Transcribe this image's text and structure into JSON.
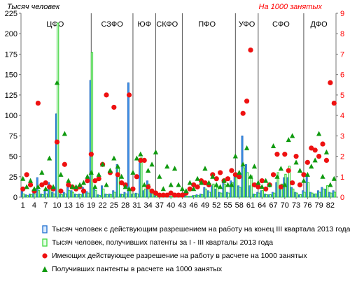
{
  "chart_data": {
    "type": "bar",
    "left_axis_title": "Тысяч человек",
    "right_axis_title": "На 1000 занятых",
    "left_ylim": [
      0,
      225
    ],
    "right_ylim": [
      0,
      9
    ],
    "left_ticks": [
      0,
      25,
      50,
      75,
      100,
      125,
      150,
      175,
      200,
      225
    ],
    "right_ticks": [
      0,
      1,
      2,
      3,
      4,
      5,
      6,
      7,
      8,
      9
    ],
    "x_ticks": [
      "1",
      "4",
      "7",
      "10",
      "13",
      "16",
      "19",
      "22",
      "25",
      "28",
      "31",
      "34",
      "37",
      "40",
      "43",
      "46",
      "49",
      "52",
      "55",
      "58",
      "61",
      "64",
      "67",
      "70",
      "73",
      "76",
      "79",
      "82"
    ],
    "regions": [
      {
        "label": "ЦФО",
        "center": 9
      },
      {
        "label": "СЗФО",
        "center": 24
      },
      {
        "label": "ЮФ",
        "center": 32.5
      },
      {
        "label": "СКФО",
        "center": 38.5
      },
      {
        "label": "ПФО",
        "center": 49
      },
      {
        "label": "УФО",
        "center": 59.5
      },
      {
        "label": "СФО",
        "center": 68.5
      },
      {
        "label": "ДФО",
        "center": 78.5
      }
    ],
    "region_separators": [
      18.5,
      29.5,
      35.5,
      42.5,
      56.5,
      62.5,
      74.5
    ],
    "series": [
      {
        "name": "Тысяч человек с действующим разрешением на работу на конец III квартала 2013 года",
        "kind": "bar",
        "axis": "left",
        "color": "#1f6fd0",
        "values": [
          9,
          3,
          4,
          6,
          24,
          4,
          9,
          18,
          6,
          102,
          4,
          6,
          12,
          8,
          4,
          4,
          12,
          7,
          143,
          12,
          3,
          14,
          4,
          4,
          8,
          40,
          4,
          6,
          140,
          4,
          5,
          42,
          8,
          20,
          6,
          2,
          2,
          1,
          2,
          1,
          2,
          1,
          1,
          2,
          1,
          2,
          3,
          4,
          12,
          8,
          14,
          10,
          6,
          18,
          6,
          20,
          28,
          14,
          75,
          40,
          14,
          4,
          6,
          8,
          4,
          3,
          6,
          18,
          12,
          24,
          24,
          12,
          6,
          3,
          8,
          26,
          6,
          4,
          8,
          12,
          10,
          6,
          8
        ]
      },
      {
        "name": "Тысяч человек, получивших патенты за I - III кварталы 2013 года",
        "kind": "bar",
        "axis": "left",
        "color": "#3fd93f",
        "values": [
          4,
          2,
          3,
          4,
          8,
          3,
          4,
          12,
          4,
          213,
          3,
          4,
          8,
          6,
          3,
          3,
          8,
          5,
          177,
          8,
          2,
          10,
          3,
          3,
          6,
          35,
          3,
          4,
          8,
          4,
          4,
          48,
          10,
          16,
          4,
          2,
          1,
          1,
          1,
          1,
          1,
          1,
          1,
          1,
          1,
          2,
          2,
          3,
          10,
          6,
          16,
          12,
          5,
          16,
          5,
          18,
          24,
          12,
          36,
          30,
          26,
          3,
          5,
          8,
          3,
          3,
          5,
          30,
          16,
          28,
          38,
          10,
          5,
          3,
          6,
          18,
          5,
          4,
          6,
          10,
          14,
          5,
          6
        ]
      },
      {
        "name": "Имеющих действующее разрешение на работу в расчете на 1000 занятых",
        "kind": "circle",
        "axis": "right",
        "color": "#ee1111",
        "values": [
          0.4,
          1.1,
          0.6,
          0.3,
          4.6,
          0.6,
          0.7,
          0.5,
          0.4,
          2.7,
          0.3,
          1.6,
          0.6,
          0.5,
          0.4,
          0.5,
          0.3,
          0.8,
          2.1,
          0.8,
          0.9,
          1.6,
          5.0,
          1.2,
          4.4,
          1.1,
          0.7,
          0.6,
          5.0,
          0.4,
          1.0,
          1.8,
          1.8,
          0.5,
          0.3,
          0.2,
          0.1,
          0.1,
          0.1,
          0.2,
          0.1,
          0.1,
          0.1,
          0.2,
          0.4,
          0.6,
          0.5,
          0.8,
          0.7,
          0.6,
          1.1,
          0.9,
          1.2,
          0.8,
          0.9,
          1.3,
          1.1,
          1.0,
          4.1,
          4.7,
          7.2,
          0.6,
          0.5,
          0.8,
          0.4,
          0.6,
          1.1,
          2.1,
          0.5,
          2.1,
          1.3,
          0.7,
          2.0,
          0.6,
          1.1,
          1.7,
          2.4,
          2.3,
          2.0,
          2.6,
          1.8,
          5.6,
          4.6
        ]
      },
      {
        "name": "Получивших пантенты в расчете на 1000 занятых",
        "kind": "triangle",
        "axis": "right",
        "color": "#0f9a0f",
        "values": [
          0.9,
          0.5,
          0.8,
          0.4,
          0.5,
          1.2,
          0.4,
          1.9,
          0.5,
          5.6,
          1.1,
          3.1,
          0.8,
          0.5,
          0.5,
          0.6,
          0.7,
          1.0,
          1.2,
          0.5,
          1.1,
          1.6,
          0.6,
          1.3,
          1.9,
          1.5,
          1.0,
          0.5,
          0.4,
          1.2,
          1.9,
          2.1,
          0.6,
          1.3,
          1.6,
          2.2,
          1.0,
          0.4,
          1.5,
          0.6,
          1.4,
          0.6,
          0.4,
          0.3,
          0.7,
          0.4,
          0.9,
          0.7,
          1.4,
          0.7,
          1.0,
          0.6,
          0.5,
          0.8,
          0.6,
          0.6,
          2.0,
          1.2,
          1.6,
          2.4,
          1.0,
          1.5,
          0.7,
          0.5,
          0.8,
          0.6,
          2.5,
          1.0,
          1.4,
          0.6,
          2.8,
          3.0,
          1.7,
          1.3,
          0.8,
          1.1,
          1.5,
          1.8,
          3.1,
          1.0,
          2.2,
          0.6,
          0.9
        ]
      }
    ],
    "grid": false,
    "legend_placement": "bottom"
  }
}
